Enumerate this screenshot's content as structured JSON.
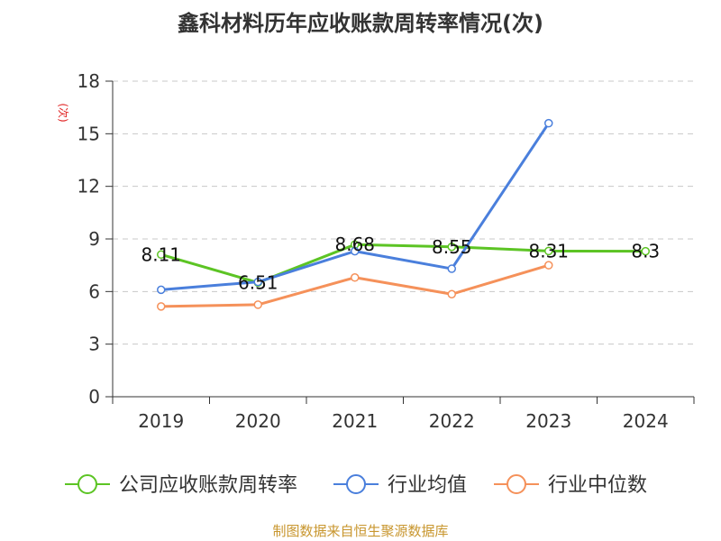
{
  "chart_data": {
    "type": "line",
    "title": "鑫科材料历年应收账款周转率情况(次)",
    "ylabel": "(次)",
    "xlabel": "",
    "categories": [
      "2019",
      "2020",
      "2021",
      "2022",
      "2023",
      "2024"
    ],
    "yticks": [
      0,
      3,
      6,
      9,
      12,
      15,
      18
    ],
    "ylim": [
      0,
      18
    ],
    "grid": "horizontal-dashed",
    "legend_position": "bottom",
    "series": [
      {
        "name": "公司应收账款周转率",
        "color": "#5cc424",
        "values": [
          8.11,
          6.51,
          8.68,
          8.55,
          8.31,
          8.3
        ],
        "labels": [
          "8.11",
          "6.51",
          "8.68",
          "8.55",
          "8.31",
          "8.3"
        ]
      },
      {
        "name": "行业均值",
        "color": "#4a7fdc",
        "values": [
          6.1,
          6.55,
          8.3,
          7.3,
          15.6,
          null
        ]
      },
      {
        "name": "行业中位数",
        "color": "#f5915a",
        "values": [
          5.15,
          5.25,
          6.8,
          5.85,
          7.5,
          null
        ]
      }
    ]
  },
  "footer": {
    "source": "制图数据来自恒生聚源数据库"
  }
}
